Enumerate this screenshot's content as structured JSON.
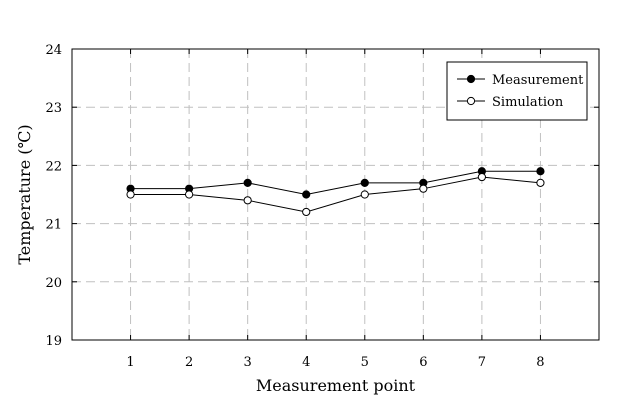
{
  "chart_data": {
    "type": "line",
    "xlabel": "Measurement point",
    "ylabel": "Temperature (℃)",
    "x": [
      1,
      2,
      3,
      4,
      5,
      6,
      7,
      8
    ],
    "x_tick_labels": [
      "1",
      "2",
      "3",
      "4",
      "5",
      "6",
      "7",
      "8"
    ],
    "xlim": [
      0,
      9
    ],
    "ylim": [
      19,
      24
    ],
    "y_ticks": [
      19,
      20,
      21,
      22,
      23,
      24
    ],
    "y_tick_labels": [
      "19",
      "20",
      "21",
      "22",
      "23",
      "24"
    ],
    "grid": true,
    "legend_position": "top-right",
    "series": [
      {
        "name": "Measurement",
        "values": [
          21.6,
          21.6,
          21.7,
          21.5,
          21.7,
          21.7,
          21.9,
          21.9
        ],
        "marker": "filled-circle",
        "color": "#000000"
      },
      {
        "name": "Simulation",
        "values": [
          21.5,
          21.5,
          21.4,
          21.2,
          21.5,
          21.6,
          21.8,
          21.7
        ],
        "marker": "open-circle",
        "color": "#000000"
      }
    ]
  }
}
